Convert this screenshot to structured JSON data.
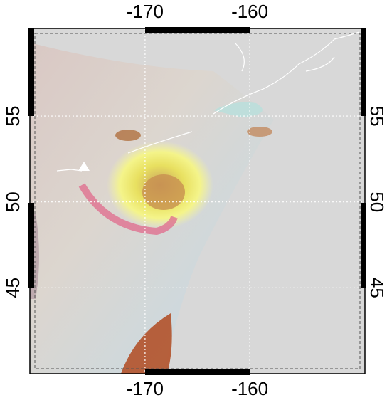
{
  "map": {
    "xlim": [
      -181,
      -149
    ],
    "ylim": [
      40,
      60.1
    ],
    "xticks": [
      -170,
      -160
    ],
    "yticks": [
      45,
      50,
      55
    ],
    "grid": true
  }
}
